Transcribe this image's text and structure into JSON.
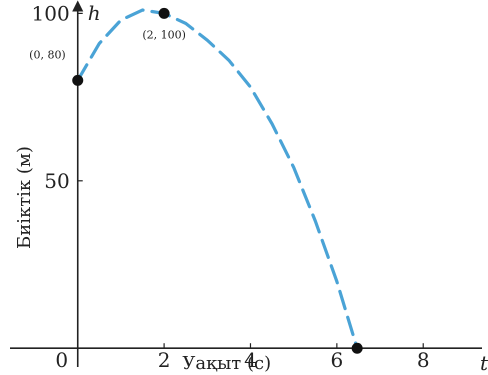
{
  "chart_data": {
    "type": "line",
    "title": "",
    "xlabel": "Уақыт (с)",
    "ylabel": "Биіктік (м)",
    "x_axis_letter": "t",
    "y_axis_letter": "h",
    "xlim": [
      -1.8,
      9.5
    ],
    "ylim": [
      -8,
      104
    ],
    "x_ticks": [
      2,
      4,
      6,
      8
    ],
    "y_ticks": [
      50,
      100
    ],
    "origin_label": "0",
    "grid": false,
    "series": [
      {
        "color": "#4aa3d6",
        "style": "dashed",
        "x": [
          0,
          0.5,
          1,
          1.5,
          2,
          2.5,
          3,
          3.5,
          4,
          4.5,
          5,
          5.5,
          6,
          6.47
        ],
        "y": [
          80,
          91,
          98,
          101,
          100,
          97,
          92,
          86,
          78,
          67,
          54,
          38,
          20,
          0
        ]
      }
    ],
    "points": [
      {
        "x": 0,
        "y": 80,
        "label": "(0, 80)"
      },
      {
        "x": 2,
        "y": 100,
        "label": "(2, 100)"
      },
      {
        "x": 6.47,
        "y": 0,
        "label": ""
      }
    ]
  }
}
